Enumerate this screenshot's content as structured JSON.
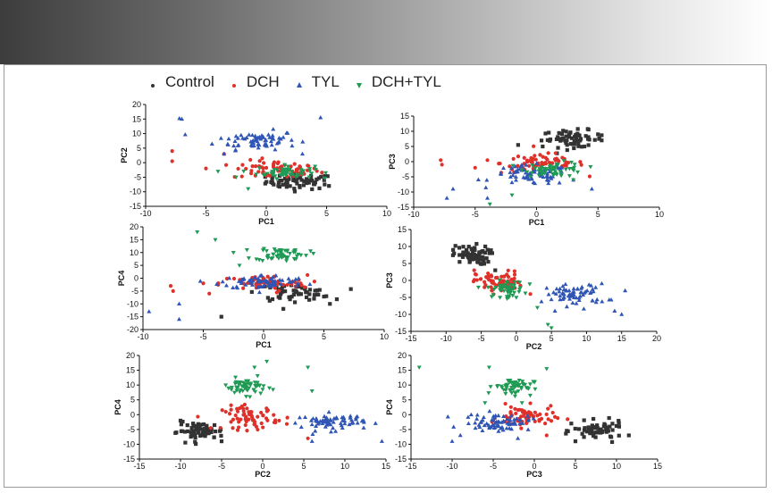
{
  "colors": {
    "Control": "#333333",
    "DCH": "#e0302a",
    "TYL": "#2f55b5",
    "DCH+TYL": "#1f9a55"
  },
  "legend": [
    {
      "name": "Control",
      "icon": "dot"
    },
    {
      "name": "DCH",
      "icon": "dot"
    },
    {
      "name": "TYL",
      "icon": "triangle-up"
    },
    {
      "name": "DCH+TYL",
      "icon": "triangle-down"
    }
  ],
  "chart_data": [
    {
      "id": "pc1-pc2",
      "type": "scatter",
      "xlabel": "PC1",
      "ylabel": "PC2",
      "xlim": [
        -10,
        10
      ],
      "ylim": [
        -15,
        20
      ],
      "xticks": [
        -10,
        -5,
        0,
        5,
        10
      ],
      "yticks": [
        -15,
        -10,
        -5,
        0,
        5,
        10,
        15,
        20
      ],
      "series": [
        {
          "name": "Control",
          "marker": "square",
          "center": [
            2.8,
            -6.5
          ],
          "spread": [
            1.4,
            1.3
          ],
          "n": 60,
          "outliers": [
            [
              5.2,
              -8
            ],
            [
              4.8,
              -6
            ],
            [
              0.5,
              -5
            ],
            [
              1,
              -8
            ]
          ]
        },
        {
          "name": "DCH",
          "marker": "circle",
          "center": [
            0.8,
            -2.5
          ],
          "spread": [
            1.8,
            1.6
          ],
          "n": 65,
          "outliers": [
            [
              -7.8,
              4
            ],
            [
              -7.8,
              0.5
            ],
            [
              -5,
              -2
            ],
            [
              -3.5,
              3
            ]
          ]
        },
        {
          "name": "TYL",
          "marker": "triangle-up",
          "center": [
            -0.8,
            7.8
          ],
          "spread": [
            1.7,
            1.6
          ],
          "n": 70,
          "outliers": [
            [
              -7,
              15
            ],
            [
              -7.2,
              15.2
            ],
            [
              4.5,
              15.5
            ],
            [
              -3.5,
              3
            ],
            [
              3,
              3
            ]
          ]
        },
        {
          "name": "DCH+TYL",
          "marker": "triangle-down",
          "center": [
            1.6,
            -3.2
          ],
          "spread": [
            1.2,
            1.1
          ],
          "n": 55,
          "outliers": [
            [
              -2.5,
              -5
            ],
            [
              -1.5,
              -9
            ],
            [
              -4,
              -3
            ]
          ]
        }
      ]
    },
    {
      "id": "pc1-pc3",
      "type": "scatter",
      "xlabel": "PC1",
      "ylabel": "PC3",
      "xlim": [
        -10,
        10
      ],
      "ylim": [
        -15,
        15
      ],
      "xticks": [
        -10,
        -5,
        0,
        5,
        10
      ],
      "yticks": [
        -15,
        -10,
        -5,
        0,
        5,
        10,
        15
      ],
      "series": [
        {
          "name": "Control",
          "marker": "square",
          "center": [
            3,
            7.5
          ],
          "spread": [
            1.3,
            1.4
          ],
          "n": 60,
          "outliers": [
            [
              5.3,
              7
            ],
            [
              -1.5,
              5.5
            ],
            [
              0.5,
              5
            ],
            [
              5,
              9
            ]
          ]
        },
        {
          "name": "DCH",
          "marker": "circle",
          "center": [
            0.5,
            -0.5
          ],
          "spread": [
            1.7,
            1.7
          ],
          "n": 65,
          "outliers": [
            [
              -7.8,
              0.5
            ],
            [
              -7.7,
              -1
            ],
            [
              -5,
              -2
            ],
            [
              -4,
              0.5
            ]
          ]
        },
        {
          "name": "TYL",
          "marker": "triangle-up",
          "center": [
            -0.5,
            -4.5
          ],
          "spread": [
            1.6,
            1.6
          ],
          "n": 70,
          "outliers": [
            [
              -7.3,
              -12
            ],
            [
              -6.8,
              -9
            ],
            [
              -4,
              -12
            ],
            [
              4.5,
              -9
            ],
            [
              3,
              -6
            ]
          ]
        },
        {
          "name": "DCH+TYL",
          "marker": "triangle-down",
          "center": [
            1.5,
            -2.5
          ],
          "spread": [
            1.2,
            1.2
          ],
          "n": 55,
          "outliers": [
            [
              -3.8,
              -14
            ],
            [
              -2,
              -11
            ],
            [
              3,
              -6
            ]
          ]
        }
      ]
    },
    {
      "id": "pc1-pc4",
      "type": "scatter",
      "xlabel": "PC1",
      "ylabel": "PC4",
      "xlim": [
        -10,
        10
      ],
      "ylim": [
        -20,
        20
      ],
      "xticks": [
        -10,
        -5,
        0,
        5,
        10
      ],
      "yticks": [
        -20,
        -15,
        -10,
        -5,
        0,
        5,
        10,
        15,
        20
      ],
      "series": [
        {
          "name": "Control",
          "marker": "square",
          "center": [
            2.5,
            -5.5
          ],
          "spread": [
            1.5,
            1.6
          ],
          "n": 60,
          "outliers": [
            [
              5.5,
              -10
            ],
            [
              -3.5,
              -15
            ],
            [
              5.2,
              -7
            ]
          ]
        },
        {
          "name": "DCH",
          "marker": "circle",
          "center": [
            0,
            -2
          ],
          "spread": [
            1.8,
            1.6
          ],
          "n": 65,
          "outliers": [
            [
              -7.7,
              -3
            ],
            [
              -7.5,
              -5
            ],
            [
              -5,
              -2
            ],
            [
              -4.5,
              -6
            ]
          ]
        },
        {
          "name": "TYL",
          "marker": "triangle-up",
          "center": [
            0,
            -1.5
          ],
          "spread": [
            1.8,
            1.4
          ],
          "n": 70,
          "outliers": [
            [
              -9.5,
              -13
            ],
            [
              -7,
              -10
            ],
            [
              -7,
              -16
            ]
          ]
        },
        {
          "name": "DCH+TYL",
          "marker": "triangle-down",
          "center": [
            1.5,
            9.5
          ],
          "spread": [
            1.1,
            1.4
          ],
          "n": 55,
          "outliers": [
            [
              -5.5,
              18
            ],
            [
              -2.5,
              10
            ],
            [
              -2,
              5
            ],
            [
              -4,
              15
            ]
          ]
        }
      ]
    },
    {
      "id": "pc2-pc3",
      "type": "scatter",
      "xlabel": "PC2",
      "ylabel": "PC3",
      "xlim": [
        -15,
        20
      ],
      "ylim": [
        -15,
        15
      ],
      "xticks": [
        -15,
        -10,
        -5,
        0,
        5,
        10,
        15,
        20
      ],
      "yticks": [
        -15,
        -10,
        -5,
        0,
        5,
        10,
        15
      ],
      "series": [
        {
          "name": "Control",
          "marker": "square",
          "center": [
            -6.5,
            7.5
          ],
          "spread": [
            1.3,
            1.4
          ],
          "n": 60,
          "outliers": [
            [
              -9,
              9
            ],
            [
              -3,
              3
            ],
            [
              -4,
              5.5
            ]
          ]
        },
        {
          "name": "DCH",
          "marker": "circle",
          "center": [
            -2.5,
            -0.5
          ],
          "spread": [
            1.6,
            1.6
          ],
          "n": 65,
          "outliers": [
            [
              -6,
              3
            ],
            [
              -3.5,
              -3
            ],
            [
              2,
              -4
            ]
          ]
        },
        {
          "name": "TYL",
          "marker": "triangle-up",
          "center": [
            8.5,
            -4.2
          ],
          "spread": [
            2.2,
            1.6
          ],
          "n": 70,
          "outliers": [
            [
              15.5,
              -3
            ],
            [
              15,
              -10
            ],
            [
              14,
              -9
            ],
            [
              5.5,
              -9
            ]
          ]
        },
        {
          "name": "DCH+TYL",
          "marker": "triangle-down",
          "center": [
            -1.5,
            -2.5
          ],
          "spread": [
            1.3,
            1.2
          ],
          "n": 55,
          "outliers": [
            [
              5,
              -14
            ],
            [
              4.5,
              -13
            ],
            [
              0,
              -5
            ],
            [
              3,
              -8
            ]
          ]
        }
      ]
    },
    {
      "id": "pc2-pc4",
      "type": "scatter",
      "xlabel": "PC2",
      "ylabel": "PC4",
      "xlim": [
        -15,
        15
      ],
      "ylim": [
        -15,
        20
      ],
      "xticks": [
        -15,
        -10,
        -5,
        0,
        5,
        10,
        15
      ],
      "yticks": [
        -15,
        -10,
        -5,
        0,
        5,
        10,
        15,
        20
      ],
      "series": [
        {
          "name": "Control",
          "marker": "square",
          "center": [
            -7.5,
            -5.5
          ],
          "spread": [
            1.4,
            1.4
          ],
          "n": 60,
          "outliers": [
            [
              -10.5,
              -6
            ],
            [
              -10,
              -2
            ],
            [
              -5,
              -9
            ]
          ]
        },
        {
          "name": "DCH",
          "marker": "circle",
          "center": [
            -1.5,
            -1
          ],
          "spread": [
            1.7,
            2
          ],
          "n": 65,
          "outliers": [
            [
              2,
              -2
            ],
            [
              3,
              -1
            ],
            [
              5.5,
              -8
            ]
          ]
        },
        {
          "name": "TYL",
          "marker": "triangle-up",
          "center": [
            8.5,
            -2.5
          ],
          "spread": [
            1.9,
            1.4
          ],
          "n": 70,
          "outliers": [
            [
              14.5,
              -9
            ],
            [
              6,
              -9
            ],
            [
              4.5,
              -1
            ]
          ]
        },
        {
          "name": "DCH+TYL",
          "marker": "triangle-down",
          "center": [
            -2,
            9.5
          ],
          "spread": [
            1.2,
            1.4
          ],
          "n": 55,
          "outliers": [
            [
              0.5,
              18
            ],
            [
              5.5,
              16
            ],
            [
              6,
              8
            ],
            [
              -1,
              16
            ],
            [
              -4.5,
              10
            ]
          ]
        }
      ]
    },
    {
      "id": "pc3-pc4",
      "type": "scatter",
      "xlabel": "PC3",
      "ylabel": "PC4",
      "xlim": [
        -15,
        15
      ],
      "ylim": [
        -15,
        20
      ],
      "xticks": [
        -15,
        -10,
        -5,
        0,
        5,
        10,
        15
      ],
      "yticks": [
        -15,
        -10,
        -5,
        0,
        5,
        10,
        15,
        20
      ],
      "series": [
        {
          "name": "Control",
          "marker": "square",
          "center": [
            7.8,
            -5.5
          ],
          "spread": [
            1.5,
            1.5
          ],
          "n": 60,
          "outliers": [
            [
              11.5,
              -7
            ],
            [
              4.5,
              -3
            ],
            [
              5,
              -9
            ]
          ]
        },
        {
          "name": "DCH",
          "marker": "circle",
          "center": [
            -1,
            -0.8
          ],
          "spread": [
            1.7,
            1.8
          ],
          "n": 65,
          "outliers": [
            [
              2,
              3
            ],
            [
              1.5,
              -7
            ]
          ]
        },
        {
          "name": "TYL",
          "marker": "triangle-up",
          "center": [
            -4.5,
            -2.5
          ],
          "spread": [
            2,
            1.4
          ],
          "n": 70,
          "outliers": [
            [
              -10,
              -9
            ],
            [
              -9,
              -7
            ],
            [
              -8,
              -3
            ],
            [
              -2,
              -8
            ]
          ]
        },
        {
          "name": "DCH+TYL",
          "marker": "triangle-down",
          "center": [
            -2.5,
            9.5
          ],
          "spread": [
            1.2,
            1.4
          ],
          "n": 55,
          "outliers": [
            [
              -14,
              16
            ],
            [
              -5.5,
              16
            ],
            [
              1.5,
              15.5
            ],
            [
              -1.5,
              4
            ],
            [
              -6,
              4
            ]
          ]
        }
      ]
    }
  ]
}
